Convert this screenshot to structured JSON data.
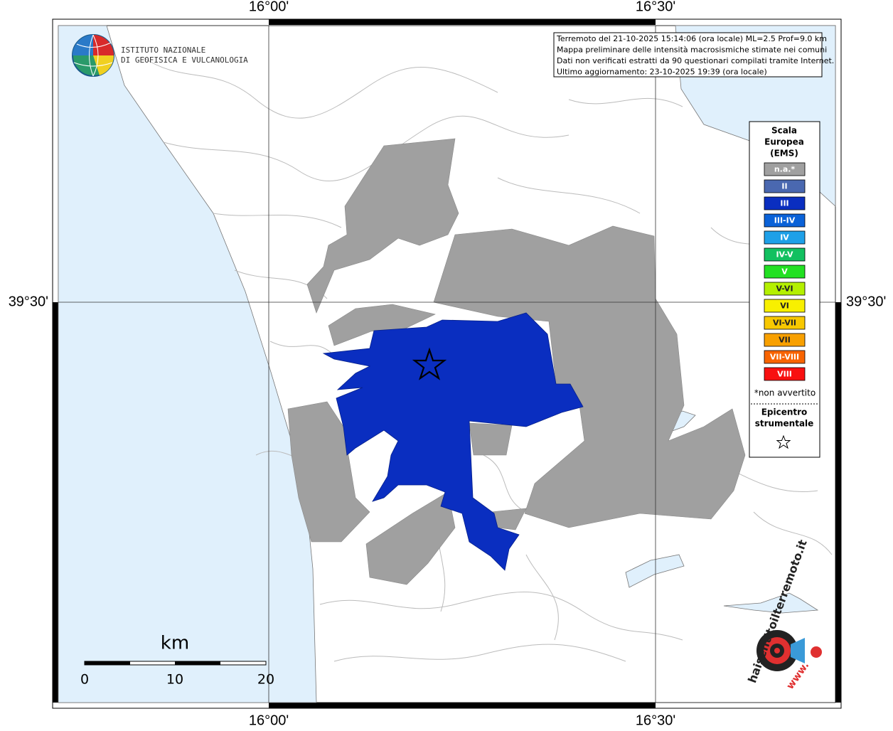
{
  "map": {
    "lon_labels": [
      "16°00'",
      "16°30'"
    ],
    "lat_labels": [
      "39°30'"
    ],
    "logo": {
      "line1": "ISTITUTO NAZIONALE",
      "line2": "DI GEOFISICA E VULCANOLOGIA"
    },
    "info": [
      "Terremoto del 21-10-2025 15:14:06 (ora locale) ML=2.5 Prof=9.0 km",
      "Mappa preliminare delle intensità macrosismiche stimate nei comuni",
      "Dati non verificati estratti da 90 questionari compilati tramite Internet.",
      "Ultimo aggiornamento: 23-10-2025 19:39 (ora locale)"
    ],
    "legend": {
      "title": [
        "Scala",
        "Europea",
        "(EMS)"
      ],
      "items": [
        {
          "label": "n.a.*",
          "color": "#a0a0a0"
        },
        {
          "label": "II",
          "color": "#4a68b0"
        },
        {
          "label": "III",
          "color": "#0a2ec0"
        },
        {
          "label": "III-IV",
          "color": "#0a62d8"
        },
        {
          "label": "IV",
          "color": "#1ea0e8"
        },
        {
          "label": "IV-V",
          "color": "#12c060"
        },
        {
          "label": "V",
          "color": "#22e022"
        },
        {
          "label": "V-VI",
          "color": "#b4f000"
        },
        {
          "label": "VI",
          "color": "#f8f000"
        },
        {
          "label": "VI-VII",
          "color": "#f8c800"
        },
        {
          "label": "VII",
          "color": "#f8a000"
        },
        {
          "label": "VII-VIII",
          "color": "#f86400"
        },
        {
          "label": "VIII",
          "color": "#f81010"
        }
      ],
      "note": "*non avvertito",
      "epicenter": [
        "Epicentro",
        "strumentale"
      ]
    },
    "scale": {
      "unit": "km",
      "ticks": [
        "0",
        "10",
        "20"
      ]
    },
    "site": {
      "prefix": "www.",
      "name": "haisentitoilterremoto.it"
    }
  }
}
